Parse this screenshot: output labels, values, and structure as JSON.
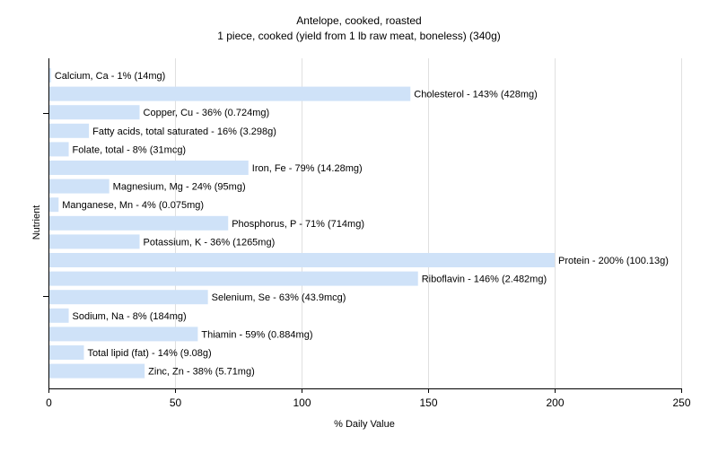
{
  "chart_data": {
    "type": "bar",
    "orientation": "horizontal",
    "title": "Antelope, cooked, roasted",
    "subtitle": "1 piece, cooked (yield from 1 lb raw meat, boneless) (340g)",
    "xlabel": "% Daily Value",
    "ylabel": "Nutrient",
    "xlim": [
      0,
      250
    ],
    "xticks": [
      0,
      50,
      100,
      150,
      200,
      250
    ],
    "grid": "vertical",
    "bar_color": "#cfe2f8",
    "gridline_color": "#e0e0e0",
    "axis_color": "#000000",
    "categories": [
      "Calcium, Ca - 1% (14mg)",
      "Cholesterol - 143% (428mg)",
      "Copper, Cu - 36% (0.724mg)",
      "Fatty acids, total saturated - 16% (3.298g)",
      "Folate, total - 8% (31mcg)",
      "Iron, Fe - 79% (14.28mg)",
      "Magnesium, Mg - 24% (95mg)",
      "Manganese, Mn - 4% (0.075mg)",
      "Phosphorus, P - 71% (714mg)",
      "Potassium, K - 36% (1265mg)",
      "Protein - 200% (100.13g)",
      "Riboflavin - 146% (2.482mg)",
      "Selenium, Se - 63% (43.9mcg)",
      "Sodium, Na - 8% (184mg)",
      "Thiamin - 59% (0.884mg)",
      "Total lipid (fat) - 14% (9.08g)",
      "Zinc, Zn - 38% (5.71mg)"
    ],
    "values": [
      1,
      143,
      36,
      16,
      8,
      79,
      24,
      4,
      71,
      36,
      200,
      146,
      63,
      8,
      59,
      14,
      38
    ]
  }
}
